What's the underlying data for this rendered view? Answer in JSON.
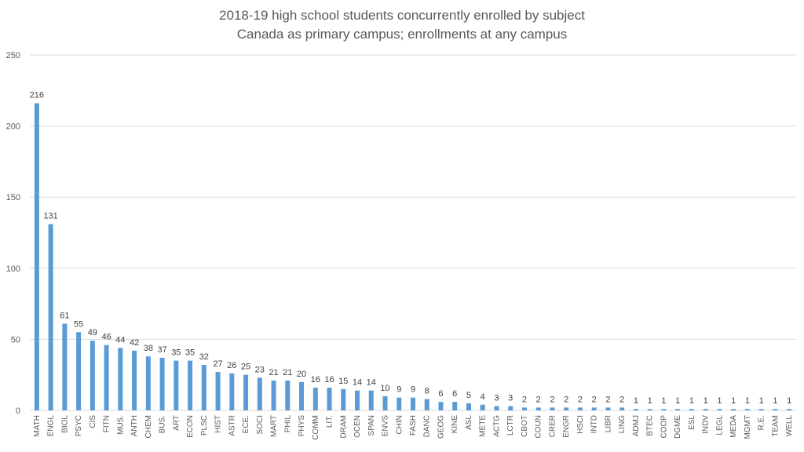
{
  "chart_data": {
    "type": "bar",
    "title": "2018-19 high school students concurrently enrolled by subject",
    "subtitle": "Canada as primary campus; enrollments at any campus",
    "xlabel": "",
    "ylabel": "",
    "ylim": [
      0,
      250
    ],
    "yticks": [
      0,
      50,
      100,
      150,
      200,
      250
    ],
    "grid": true,
    "legend": "none",
    "bar_color": "#5b9bd5",
    "categories": [
      "MATH",
      "ENGL",
      "BIOL",
      "PSYC",
      "CIS",
      "FITN",
      "MUS.",
      "ANTH",
      "CHEM",
      "BUS.",
      "ART",
      "ECON",
      "PLSC",
      "HIST",
      "ASTR",
      "ECE.",
      "SOCI",
      "MART",
      "PHIL",
      "PHYS",
      "COMM",
      "LIT.",
      "DRAM",
      "OCEN",
      "SPAN",
      "ENVS",
      "CHIN",
      "FASH",
      "DANC",
      "GEOG",
      "KINE",
      "ASL",
      "METE",
      "ACTG",
      "LCTR",
      "CBOT",
      "COUN",
      "CRER",
      "ENGR",
      "HSCI",
      "INTD",
      "LIBR",
      "LING",
      "ADMJ",
      "BTEC",
      "COOP",
      "DGME",
      "ESL",
      "INDV",
      "LEGL",
      "MEDA",
      "MGMT",
      "R.E.",
      "TEAM",
      "WELL"
    ],
    "values": [
      216,
      131,
      61,
      55,
      49,
      46,
      44,
      42,
      38,
      37,
      35,
      35,
      32,
      27,
      26,
      25,
      23,
      21,
      21,
      20,
      16,
      16,
      15,
      14,
      14,
      10,
      9,
      9,
      8,
      6,
      6,
      5,
      4,
      3,
      3,
      2,
      2,
      2,
      2,
      2,
      2,
      2,
      2,
      1,
      1,
      1,
      1,
      1,
      1,
      1,
      1,
      1,
      1,
      1,
      1
    ]
  }
}
